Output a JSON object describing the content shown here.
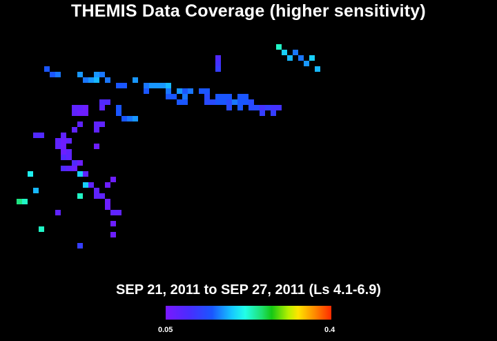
{
  "title": "THEMIS Data Coverage (higher sensitivity)",
  "subtitle": "SEP 21, 2011 to SEP 27, 2011 (Ls 4.1-6.9)",
  "colorbar": {
    "min_label": "0.05",
    "max_label": "0.4",
    "min": 0.05,
    "max": 0.4
  },
  "chart_data": {
    "type": "heatmap",
    "title": "THEMIS Data Coverage (higher sensitivity)",
    "subtitle": "SEP 21, 2011 to SEP 27, 2011 (Ls 4.1-6.9)",
    "grid": false,
    "colorscale": [
      "#7a18ff",
      "#4a2cff",
      "#1a56ff",
      "#16c8ff",
      "#22ffe8",
      "#1fe070",
      "#14c814",
      "#b6f000",
      "#ffe400",
      "#ff8a00",
      "#ff2a00"
    ],
    "value_range": [
      0.05,
      0.4
    ],
    "cells": [
      [
        2,
        14,
        0.1
      ],
      [
        5,
        7,
        0.2
      ],
      [
        10,
        4,
        0.2
      ],
      [
        10,
        3,
        0.22
      ],
      [
        12,
        6,
        0.15
      ],
      [
        15,
        5,
        0.18
      ],
      [
        15,
        14,
        0.16
      ],
      [
        4,
        20,
        0.06
      ],
      [
        8,
        10,
        0.07
      ],
      [
        11,
        14,
        0.2
      ],
      [
        13,
        15,
        0.16
      ],
      [
        16,
        11,
        0.08
      ],
      [
        16,
        12,
        0.07
      ],
      [
        16,
        13,
        0.06
      ],
      [
        17,
        13,
        0.08
      ],
      [
        18,
        11,
        0.08
      ],
      [
        23,
        13,
        0.07
      ],
      [
        24,
        14,
        0.07
      ],
      [
        26,
        13,
        0.07
      ],
      [
        27,
        13,
        0.07
      ],
      [
        26,
        14,
        0.06
      ],
      [
        27,
        14,
        0.07
      ],
      [
        26,
        15,
        0.06
      ],
      [
        27,
        15,
        0.06
      ],
      [
        28,
        18,
        0.08
      ],
      [
        28,
        19,
        0.08
      ],
      [
        27,
        18,
        0.07
      ],
      [
        27,
        21,
        0.12
      ],
      [
        26,
        21,
        0.12
      ],
      [
        25,
        24,
        0.14
      ],
      [
        25,
        23,
        0.13
      ],
      [
        25,
        22,
        0.12
      ],
      [
        24,
        18,
        0.07
      ],
      [
        24,
        17,
        0.07
      ],
      [
        23,
        17,
        0.07
      ],
      [
        20,
        17,
        0.06
      ],
      [
        22,
        6,
        0.08
      ],
      [
        22,
        7,
        0.08
      ],
      [
        21,
        10,
        0.07
      ],
      [
        20,
        10,
        0.07
      ],
      [
        20,
        11,
        0.06
      ],
      [
        21,
        11,
        0.06
      ],
      [
        19,
        11,
        0.06
      ],
      [
        22,
        11,
        0.07
      ],
      [
        21,
        12,
        0.07
      ],
      [
        19,
        12,
        0.07
      ],
      [
        18,
        12,
        0.07
      ],
      [
        17,
        14,
        0.06
      ],
      [
        15,
        15,
        0.07
      ],
      [
        13,
        19,
        0.06
      ],
      [
        14,
        20,
        0.06
      ],
      [
        13,
        16,
        0.07
      ],
      [
        12,
        17,
        0.07
      ],
      [
        11,
        17,
        0.07
      ],
      [
        11,
        18,
        0.07
      ],
      [
        8,
        20,
        0.07
      ],
      [
        8,
        21,
        0.07
      ],
      [
        6,
        20,
        0.06
      ],
      [
        9,
        19,
        0.06
      ],
      [
        10,
        19,
        0.06
      ],
      [
        33,
        9,
        0.12
      ],
      [
        34,
        8,
        0.12
      ],
      [
        33,
        10,
        0.13
      ],
      [
        33,
        14,
        0.14
      ],
      [
        32,
        15,
        0.13
      ],
      [
        32,
        16,
        0.14
      ],
      [
        32,
        17,
        0.15
      ],
      [
        33,
        17,
        0.14
      ],
      [
        33,
        18,
        0.13
      ],
      [
        32,
        19,
        0.13
      ],
      [
        31,
        21,
        0.12
      ],
      [
        31,
        22,
        0.12
      ],
      [
        32,
        24,
        0.14
      ],
      [
        30,
        26,
        0.12
      ],
      [
        31,
        26,
        0.13
      ],
      [
        31,
        27,
        0.14
      ],
      [
        31,
        28,
        0.14
      ],
      [
        31,
        29,
        0.14
      ],
      [
        31,
        30,
        0.15
      ],
      [
        30,
        30,
        0.13
      ],
      [
        29,
        30,
        0.12
      ],
      [
        29,
        31,
        0.12
      ],
      [
        30,
        32,
        0.14
      ],
      [
        28,
        32,
        0.12
      ],
      [
        28,
        33,
        0.12
      ],
      [
        29,
        33,
        0.13
      ],
      [
        30,
        33,
        0.12
      ],
      [
        30,
        34,
        0.13
      ],
      [
        30,
        36,
        0.12
      ],
      [
        30,
        37,
        0.12
      ],
      [
        28,
        37,
        0.11
      ],
      [
        29,
        37,
        0.11
      ],
      [
        28,
        38,
        0.11
      ],
      [
        28,
        39,
        0.12
      ],
      [
        29,
        39,
        0.12
      ],
      [
        28,
        40,
        0.12
      ],
      [
        29,
        40,
        0.12
      ],
      [
        27,
        41,
        0.11
      ],
      [
        28,
        41,
        0.11
      ],
      [
        29,
        41,
        0.12
      ],
      [
        28,
        42,
        0.13
      ],
      [
        27,
        43,
        0.12
      ],
      [
        28,
        43,
        0.12
      ],
      [
        29,
        43,
        0.12
      ],
      [
        28,
        44,
        0.12
      ],
      [
        29,
        44,
        0.12
      ],
      [
        27,
        45,
        0.11
      ],
      [
        28,
        45,
        0.11
      ],
      [
        27,
        46,
        0.11
      ],
      [
        34,
        39,
        0.1
      ],
      [
        35,
        39,
        0.09
      ],
      [
        36,
        39,
        0.08
      ],
      [
        26,
        47,
        0.1
      ],
      [
        27,
        47,
        0.09
      ],
      [
        27,
        48,
        0.1
      ],
      [
        26,
        49,
        0.1
      ],
      [
        27,
        49,
        0.09
      ],
      [
        27,
        50,
        0.09
      ],
      [
        38,
        50,
        0.2
      ],
      [
        37,
        51,
        0.16
      ],
      [
        36,
        52,
        0.15
      ],
      [
        37,
        53,
        0.13
      ],
      [
        36,
        54,
        0.13
      ],
      [
        35,
        55,
        0.14
      ],
      [
        36,
        56,
        0.16
      ],
      [
        34,
        57,
        0.15
      ]
    ]
  }
}
